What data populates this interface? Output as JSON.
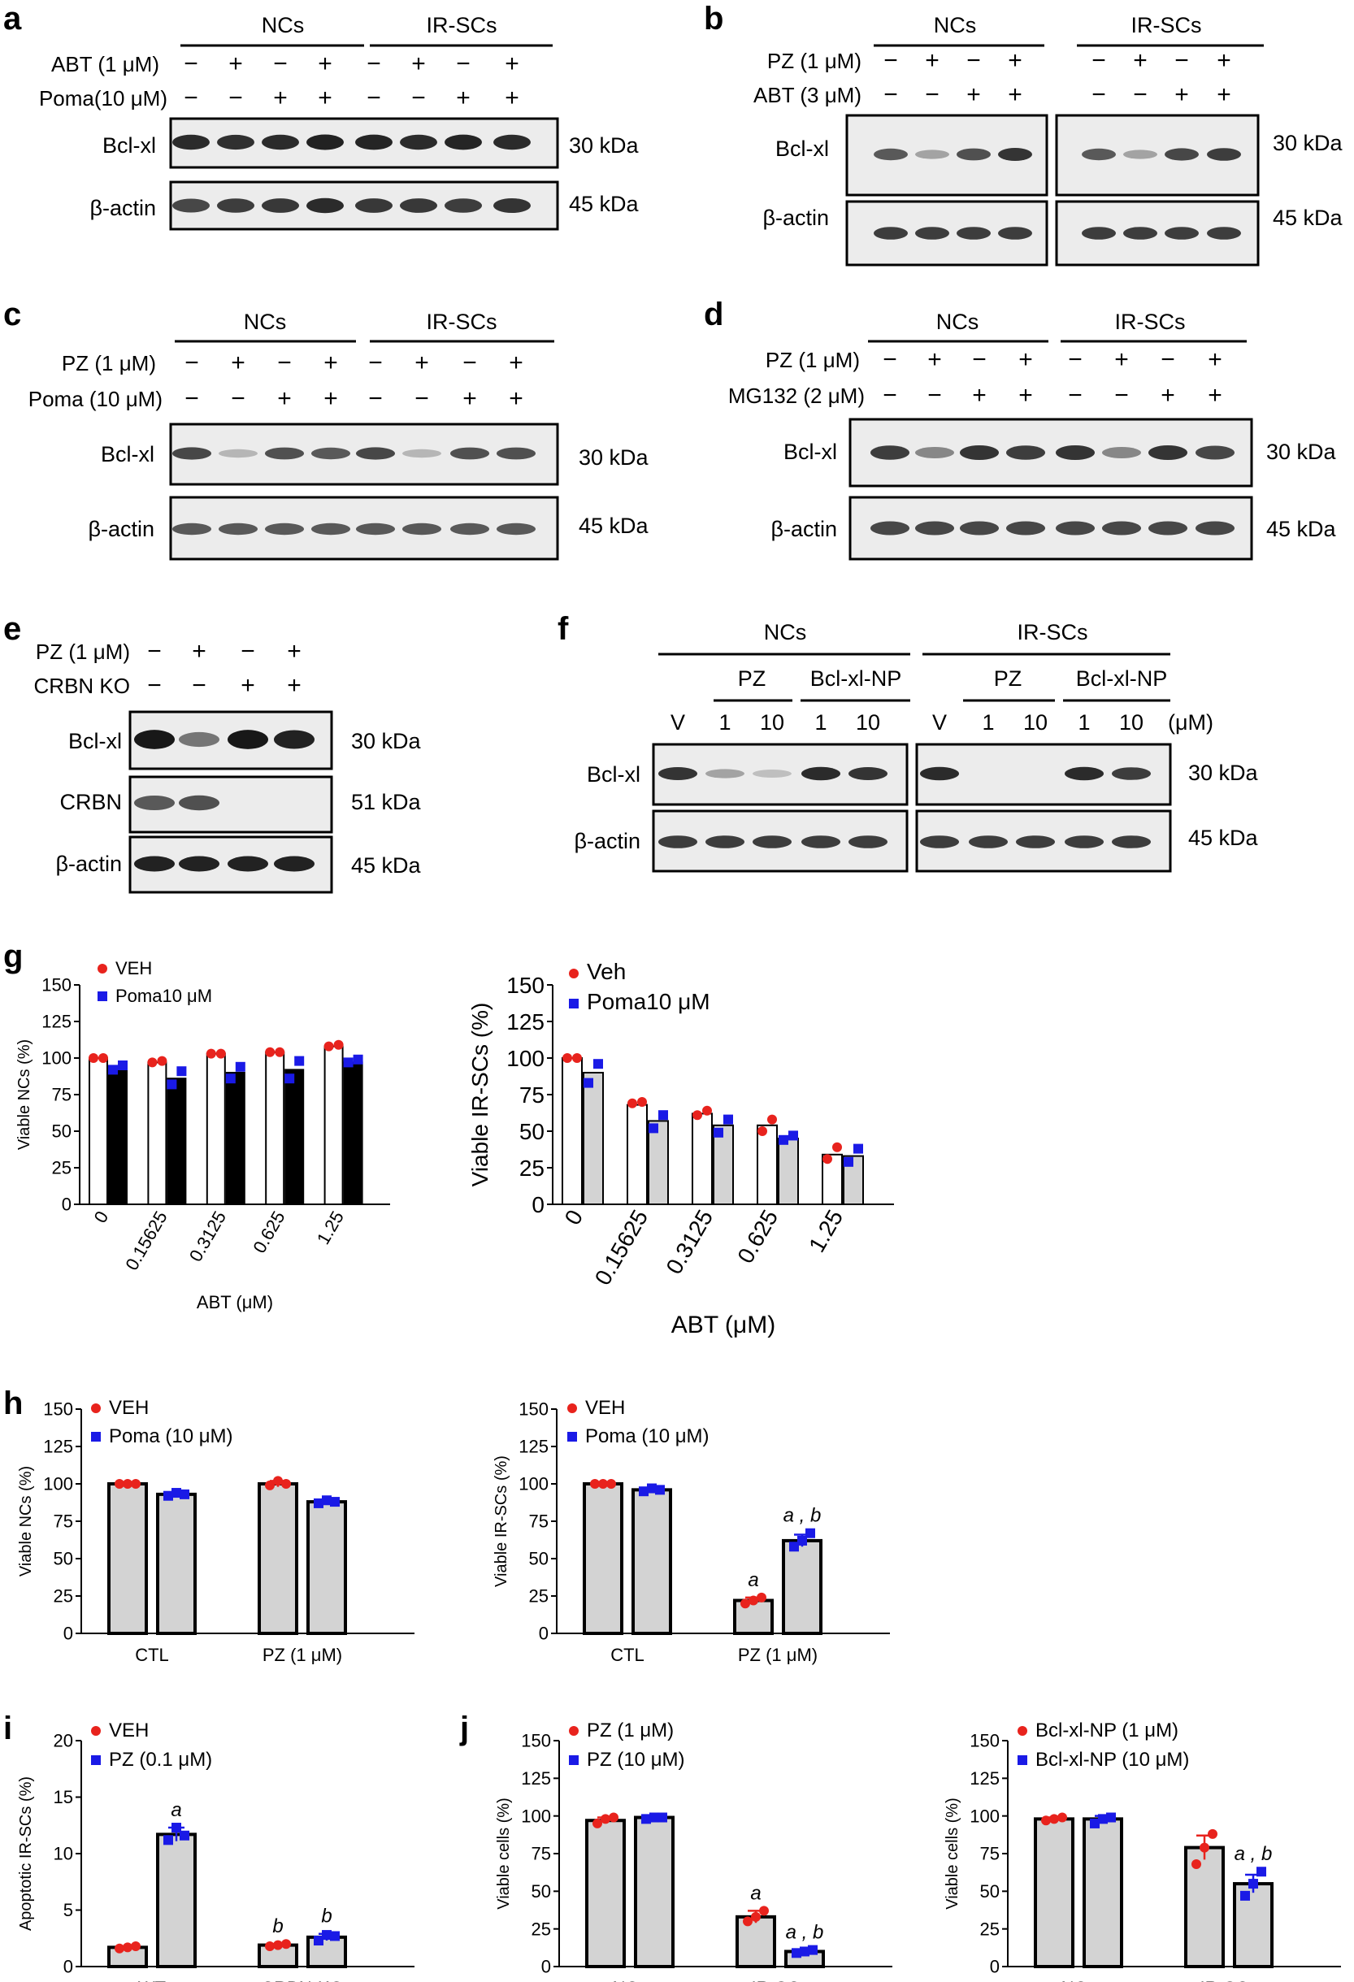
{
  "panels": {
    "a": {
      "letter": "a",
      "groups": [
        "NCs",
        "IR-SCs"
      ],
      "treatments": [
        {
          "label": "ABT (1 μM)",
          "signs": [
            "−",
            "+",
            "−",
            "+",
            "−",
            "+",
            "−",
            "+"
          ]
        },
        {
          "label": "Poma(10 μM)",
          "signs": [
            "−",
            "−",
            "+",
            "+",
            "−",
            "−",
            "+",
            "+"
          ]
        }
      ],
      "blots": [
        {
          "label": "Bcl-xl",
          "size": "30 kDa",
          "intensity": [
            0.85,
            0.82,
            0.85,
            0.9,
            0.88,
            0.85,
            0.88,
            0.85
          ]
        },
        {
          "label": "β-actin",
          "size": "45 kDa",
          "intensity": [
            0.7,
            0.75,
            0.78,
            0.85,
            0.78,
            0.78,
            0.75,
            0.8
          ]
        }
      ]
    },
    "b": {
      "letter": "b",
      "groups": [
        "NCs",
        "IR-SCs"
      ],
      "treatments": [
        {
          "label": "PZ (1 μM)",
          "signs": [
            "−",
            "+",
            "−",
            "+",
            "−",
            "+",
            "−",
            "+"
          ]
        },
        {
          "label": "ABT (3 μM)",
          "signs": [
            "−",
            "−",
            "+",
            "+",
            "−",
            "−",
            "+",
            "+"
          ]
        }
      ],
      "blots": [
        {
          "label": "Bcl-xl",
          "size": "30 kDa",
          "intensity": [
            0.6,
            0.2,
            0.65,
            0.8,
            0.6,
            0.2,
            0.7,
            0.75
          ]
        },
        {
          "label": "β-actin",
          "size": "45 kDa",
          "intensity": [
            0.75,
            0.75,
            0.75,
            0.75,
            0.75,
            0.75,
            0.75,
            0.75
          ]
        }
      ]
    },
    "c": {
      "letter": "c",
      "groups": [
        "NCs",
        "IR-SCs"
      ],
      "treatments": [
        {
          "label": "PZ (1 μM)",
          "signs": [
            "−",
            "+",
            "−",
            "+",
            "−",
            "+",
            "−",
            "+"
          ]
        },
        {
          "label": "Poma (10 μM)",
          "signs": [
            "−",
            "−",
            "+",
            "+",
            "−",
            "−",
            "+",
            "+"
          ]
        }
      ],
      "blots": [
        {
          "label": "Bcl-xl",
          "size": "30 kDa",
          "intensity": [
            0.7,
            0.1,
            0.65,
            0.6,
            0.7,
            0.1,
            0.65,
            0.65
          ]
        },
        {
          "label": "β-actin",
          "size": "45 kDa",
          "intensity": [
            0.6,
            0.6,
            0.6,
            0.6,
            0.6,
            0.6,
            0.6,
            0.6
          ]
        }
      ]
    },
    "d": {
      "letter": "d",
      "groups": [
        "NCs",
        "IR-SCs"
      ],
      "treatments": [
        {
          "label": "PZ (1 μM)",
          "signs": [
            "−",
            "+",
            "−",
            "+",
            "−",
            "+",
            "−",
            "+"
          ]
        },
        {
          "label": "MG132 (2 μM)",
          "signs": [
            "−",
            "−",
            "+",
            "+",
            "−",
            "−",
            "+",
            "+"
          ]
        }
      ],
      "blots": [
        {
          "label": "Bcl-xl",
          "size": "30 kDa",
          "intensity": [
            0.75,
            0.35,
            0.8,
            0.75,
            0.8,
            0.35,
            0.8,
            0.7
          ]
        },
        {
          "label": "β-actin",
          "size": "45 kDa",
          "intensity": [
            0.7,
            0.7,
            0.7,
            0.7,
            0.7,
            0.7,
            0.7,
            0.7
          ]
        }
      ]
    },
    "e": {
      "letter": "e",
      "treatments": [
        {
          "label": "PZ (1 μM)",
          "signs": [
            "−",
            "+",
            "−",
            "+"
          ]
        },
        {
          "label": "CRBN KO",
          "signs": [
            "−",
            "−",
            "+",
            "+"
          ]
        }
      ],
      "blots": [
        {
          "label": "Bcl-xl",
          "size": "30 kDa",
          "intensity": [
            0.95,
            0.45,
            0.95,
            0.9
          ]
        },
        {
          "label": "CRBN",
          "size": "51 kDa",
          "intensity": [
            0.6,
            0.65,
            0,
            0
          ]
        },
        {
          "label": "β-actin",
          "size": "45 kDa",
          "intensity": [
            0.9,
            0.9,
            0.9,
            0.9
          ]
        }
      ]
    },
    "f": {
      "letter": "f",
      "groups": [
        "NCs",
        "IR-SCs"
      ],
      "subgroups": [
        "PZ",
        "Bcl-xl-NP"
      ],
      "lanes": [
        "V",
        "1",
        "10",
        "1",
        "10"
      ],
      "unit": "(μM)",
      "blots": [
        {
          "label": "Bcl-xl",
          "size": "30 kDa",
          "intensity": [
            0.8,
            0.2,
            0.05,
            0.85,
            0.8,
            0.85,
            0,
            0,
            0.85,
            0.75
          ]
        },
        {
          "label": "β-actin",
          "size": "45 kDa",
          "intensity": [
            0.75,
            0.75,
            0.75,
            0.75,
            0.75,
            0.75,
            0.75,
            0.75,
            0.75,
            0.75
          ]
        }
      ]
    },
    "g": {
      "letter": "g"
    },
    "h": {
      "letter": "h"
    },
    "i": {
      "letter": "i"
    },
    "j": {
      "letter": "j"
    }
  },
  "colors": {
    "veh": "#e8231d",
    "treat": "#1a1ae6",
    "grey_bar": "#d3d3d3",
    "black_bar": "#000000"
  },
  "chart_data": [
    {
      "id": "g-left",
      "type": "bar",
      "categories": [
        "0",
        "0.15625",
        "0.3125",
        "0.625",
        "1.25"
      ],
      "xlabel": "ABT (μM)",
      "ylabel": "Viable NCs (%)",
      "ylim": [
        0,
        150
      ],
      "yticks": [
        0,
        25,
        50,
        75,
        100,
        125,
        150
      ],
      "legend": [
        "VEH",
        "Poma10 μM"
      ],
      "series": [
        {
          "name": "VEH",
          "values": [
            100,
            97,
            103,
            104,
            108
          ],
          "bar": "white",
          "points": [
            [
              100,
              100
            ],
            [
              97,
              98
            ],
            [
              103,
              103
            ],
            [
              104,
              104
            ],
            [
              108,
              109
            ]
          ]
        },
        {
          "name": "Poma10 μM",
          "values": [
            93,
            86,
            90,
            92,
            97
          ],
          "bar": "black",
          "points": [
            [
              92,
              95
            ],
            [
              82,
              91
            ],
            [
              86,
              94
            ],
            [
              86,
              98
            ],
            [
              97,
              99
            ]
          ]
        }
      ]
    },
    {
      "id": "g-right",
      "type": "bar",
      "categories": [
        "0",
        "0.15625",
        "0.3125",
        "0.625",
        "1.25"
      ],
      "xlabel": "ABT (μM)",
      "ylabel": "Viable IR-SCs (%)",
      "ylim": [
        0,
        150
      ],
      "yticks": [
        0,
        25,
        50,
        75,
        100,
        125,
        150
      ],
      "legend": [
        "Veh",
        "Poma10 μM"
      ],
      "series": [
        {
          "name": "Veh",
          "values": [
            100,
            68,
            62,
            54,
            34
          ],
          "bar": "white",
          "points": [
            [
              100,
              100
            ],
            [
              69,
              70
            ],
            [
              61,
              64
            ],
            [
              50,
              58
            ],
            [
              31,
              39
            ]
          ]
        },
        {
          "name": "Poma10 μM",
          "values": [
            90,
            57,
            54,
            45,
            33
          ],
          "bar": "grey",
          "points": [
            [
              83,
              96
            ],
            [
              52,
              61
            ],
            [
              49,
              58
            ],
            [
              44,
              47
            ],
            [
              29,
              38
            ]
          ]
        }
      ]
    },
    {
      "id": "h-left",
      "type": "bar",
      "categories": [
        "CTL",
        "PZ (1 μM)"
      ],
      "ylabel": "Viable NCs (%)",
      "ylim": [
        0,
        150
      ],
      "yticks": [
        0,
        25,
        50,
        75,
        100,
        125,
        150
      ],
      "legend": [
        "VEH",
        "Poma (10 μM)"
      ],
      "series": [
        {
          "name": "VEH",
          "values": [
            100,
            100
          ],
          "sem": [
            0,
            2
          ],
          "points": [
            [
              100,
              100,
              100
            ],
            [
              99,
              102,
              100
            ]
          ]
        },
        {
          "name": "Poma (10 μM)",
          "values": [
            93,
            88
          ],
          "sem": [
            1,
            1
          ],
          "points": [
            [
              92,
              94,
              93
            ],
            [
              87,
              89,
              88
            ]
          ]
        }
      ]
    },
    {
      "id": "h-right",
      "type": "bar",
      "categories": [
        "CTL",
        "PZ (1 μM)"
      ],
      "ylabel": "Viable IR-SCs (%)",
      "ylim": [
        0,
        150
      ],
      "yticks": [
        0,
        25,
        50,
        75,
        100,
        125,
        150
      ],
      "legend": [
        "VEH",
        "Poma (10 μM)"
      ],
      "series": [
        {
          "name": "VEH",
          "values": [
            100,
            22
          ],
          "sem": [
            0,
            2
          ],
          "points": [
            [
              100,
              100,
              100
            ],
            [
              20,
              22,
              24
            ]
          ],
          "labels": [
            "",
            "a"
          ]
        },
        {
          "name": "Poma (10 μM)",
          "values": [
            96,
            62
          ],
          "sem": [
            1,
            4
          ],
          "points": [
            [
              95,
              97,
              96
            ],
            [
              58,
              62,
              67
            ]
          ],
          "labels": [
            "",
            "a , b"
          ]
        }
      ]
    },
    {
      "id": "i",
      "type": "bar",
      "categories": [
        "WT",
        "CRBN-KO"
      ],
      "ylabel": "Apoptotic IR-SCs (%)",
      "ylim": [
        0,
        20
      ],
      "yticks": [
        0,
        5,
        10,
        15,
        20
      ],
      "legend": [
        "VEH",
        "PZ (0.1 μM)"
      ],
      "series": [
        {
          "name": "VEH",
          "values": [
            1.7,
            1.9
          ],
          "sem": [
            0.1,
            0.1
          ],
          "points": [
            [
              1.6,
              1.7,
              1.8
            ],
            [
              1.8,
              1.9,
              2.0
            ]
          ],
          "labels": [
            "",
            "b"
          ]
        },
        {
          "name": "PZ (0.1 μM)",
          "values": [
            11.7,
            2.6
          ],
          "sem": [
            0.6,
            0.3
          ],
          "points": [
            [
              11.2,
              12.3,
              11.6
            ],
            [
              2.3,
              2.8,
              2.7
            ]
          ],
          "labels": [
            "a",
            "b"
          ]
        }
      ]
    },
    {
      "id": "j-left",
      "type": "bar",
      "categories": [
        "NCs",
        "IR-SCs"
      ],
      "ylabel": "Viable cells (%)",
      "ylim": [
        0,
        150
      ],
      "yticks": [
        0,
        25,
        50,
        75,
        100,
        125,
        150
      ],
      "legend": [
        "PZ (1 μM)",
        "PZ (10 μM)"
      ],
      "series": [
        {
          "name": "PZ (1 μM)",
          "values": [
            97,
            33
          ],
          "sem": [
            2,
            4
          ],
          "points": [
            [
              95,
              98,
              99
            ],
            [
              30,
              33,
              37
            ]
          ],
          "labels": [
            "",
            "a"
          ]
        },
        {
          "name": "PZ (10 μM)",
          "values": [
            99,
            10
          ],
          "sem": [
            1,
            1
          ],
          "points": [
            [
              98,
              99,
              99
            ],
            [
              9,
              10,
              11
            ]
          ],
          "labels": [
            "",
            "a , b"
          ]
        }
      ]
    },
    {
      "id": "j-right",
      "type": "bar",
      "categories": [
        "NCs",
        "IR-SCs"
      ],
      "ylabel": "Viable cells (%)",
      "ylim": [
        0,
        150
      ],
      "yticks": [
        0,
        25,
        50,
        75,
        100,
        125,
        150
      ],
      "legend": [
        "Bcl-xl-NP (1 μM)",
        "Bcl-xl-NP (10 μM)"
      ],
      "series": [
        {
          "name": "Bcl-xl-NP (1 μM)",
          "values": [
            98,
            79
          ],
          "sem": [
            1,
            8
          ],
          "points": [
            [
              97,
              98,
              99
            ],
            [
              68,
              79,
              88
            ]
          ],
          "labels": [
            "",
            ""
          ]
        },
        {
          "name": "Bcl-xl-NP (10 μM)",
          "values": [
            98,
            55
          ],
          "sem": [
            2,
            6
          ],
          "points": [
            [
              95,
              98,
              99
            ],
            [
              47,
              55,
              63
            ]
          ],
          "labels": [
            "",
            "a , b"
          ]
        }
      ]
    }
  ]
}
